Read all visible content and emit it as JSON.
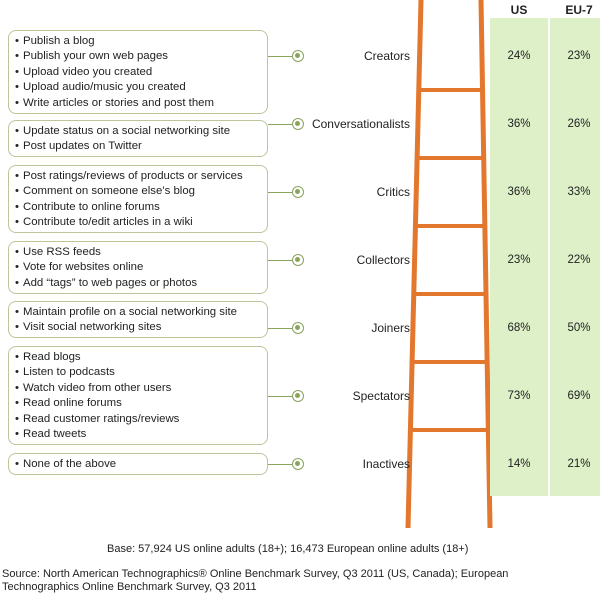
{
  "columns": {
    "us": "US",
    "eu": "EU-7"
  },
  "colors": {
    "ladder": "#e2772d",
    "column_fill": "#ddf0c8",
    "box_border": "#b9c79a",
    "connector": "#8aa35c"
  },
  "rungs": [
    {
      "label": "Creators",
      "us": "24%",
      "eu": "23%",
      "activities": [
        "Publish a blog",
        "Publish your own web pages",
        "Upload video you created",
        "Upload audio/music you created",
        "Write articles or stories and post them"
      ]
    },
    {
      "label": "Conversationalists",
      "us": "36%",
      "eu": "26%",
      "activities": [
        "Update status on a social networking site",
        "Post updates on Twitter"
      ]
    },
    {
      "label": "Critics",
      "us": "36%",
      "eu": "33%",
      "activities": [
        "Post ratings/reviews of products or services",
        "Comment on someone else’s blog",
        "Contribute to online forums",
        "Contribute to/edit articles in a wiki"
      ]
    },
    {
      "label": "Collectors",
      "us": "23%",
      "eu": "22%",
      "activities": [
        "Use RSS feeds",
        "Vote for websites online",
        "Add “tags” to web pages or photos"
      ]
    },
    {
      "label": "Joiners",
      "us": "68%",
      "eu": "50%",
      "activities": [
        "Maintain profile on a social networking site",
        "Visit social networking sites"
      ]
    },
    {
      "label": "Spectators",
      "us": "73%",
      "eu": "69%",
      "activities": [
        "Read blogs",
        "Listen to podcasts",
        "Watch video from other users",
        "Read online forums",
        "Read customer ratings/reviews",
        "Read tweets"
      ]
    },
    {
      "label": "Inactives",
      "us": "14%",
      "eu": "21%",
      "activities": [
        "None of the above"
      ]
    }
  ],
  "base_note": "Base: 57,924 US online adults (18+); 16,473 European online adults (18+)",
  "source_line1": "Source: North American Technographics® Online Benchmark Survey, Q3 2011 (US, Canada); European",
  "source_line2": "Technographics Online Benchmark Survey, Q3 2011"
}
